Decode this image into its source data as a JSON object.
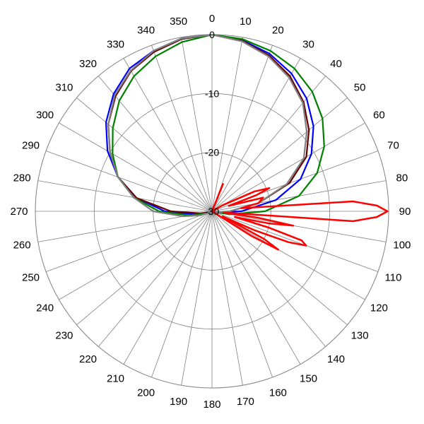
{
  "chart_data": {
    "type": "line",
    "subtype": "polar-radiation-pattern",
    "title": "",
    "angle_unit": "degrees",
    "angle_zero": "top",
    "angle_direction": "clockwise",
    "angle_step": 10,
    "angle_ticks": [
      "0",
      "10",
      "20",
      "30",
      "40",
      "50",
      "60",
      "70",
      "80",
      "90",
      "100",
      "110",
      "120",
      "130",
      "140",
      "150",
      "160",
      "170",
      "180",
      "190",
      "200",
      "210",
      "220",
      "230",
      "240",
      "250",
      "260",
      "270",
      "280",
      "290",
      "300",
      "310",
      "320",
      "330",
      "340",
      "350"
    ],
    "radial_range": [
      -30,
      0
    ],
    "radial_ticks": [
      -30,
      -20,
      -10,
      0
    ],
    "radial_tick_labels": [
      "-30",
      "-20",
      "-10",
      "0"
    ],
    "grid": true,
    "colors": {
      "grid": "#808080",
      "outline": "#808080",
      "series": [
        "#0000ff",
        "#660000",
        "#008000",
        "#808080",
        "#ff0000"
      ]
    },
    "series": [
      {
        "angles": [
          0,
          10,
          20,
          30,
          40,
          50,
          60,
          70,
          80,
          90,
          100,
          105,
          110,
          120,
          180,
          240,
          250,
          260,
          270,
          280,
          290,
          300,
          310,
          320,
          330,
          340,
          350,
          360
        ],
        "values": [
          0,
          -0.5,
          -1.5,
          -3,
          -5,
          -7.5,
          -10.5,
          -14,
          -19,
          -25,
          -29,
          -30,
          -30,
          -30,
          -30,
          -30,
          -29,
          -27,
          -22,
          -17,
          -13,
          -9.5,
          -6.5,
          -4,
          -2,
          -1,
          -0.2,
          0
        ]
      },
      {
        "angles": [
          0,
          10,
          20,
          30,
          40,
          50,
          60,
          70,
          80,
          90,
          100,
          105,
          110,
          120,
          180,
          240,
          250,
          260,
          270,
          280,
          290,
          300,
          310,
          320,
          330,
          340,
          350,
          360
        ],
        "values": [
          0,
          -0.6,
          -1.8,
          -3.5,
          -5.8,
          -8.5,
          -11.5,
          -16,
          -22,
          -27,
          -28,
          -30,
          -30,
          -30,
          -30,
          -30,
          -29.5,
          -28,
          -23,
          -17,
          -13,
          -10,
          -7,
          -4.5,
          -2.5,
          -1.2,
          -0.3,
          0
        ]
      },
      {
        "angles": [
          0,
          10,
          20,
          30,
          40,
          50,
          60,
          70,
          80,
          90,
          100,
          110,
          120,
          180,
          240,
          250,
          260,
          270,
          280,
          290,
          300,
          310,
          320,
          330,
          340,
          350,
          360
        ],
        "values": [
          0,
          -0.3,
          -1,
          -2,
          -3.5,
          -5.5,
          -8,
          -11,
          -15,
          -21,
          -27,
          -30,
          -30,
          -30,
          -30,
          -29,
          -26,
          -21,
          -16.5,
          -13,
          -10.5,
          -8,
          -5.5,
          -3.5,
          -2,
          -0.8,
          0
        ]
      },
      {
        "angles": [
          0,
          10,
          20,
          30,
          40,
          50,
          60,
          70,
          80,
          90,
          100,
          105,
          110,
          120,
          180,
          240,
          250,
          260,
          270,
          280,
          290,
          300,
          310,
          320,
          330,
          340,
          350,
          360
        ],
        "values": [
          0,
          -0.7,
          -2,
          -3.8,
          -6,
          -9,
          -12,
          -16.5,
          -22,
          -27,
          -29,
          -30,
          -30,
          -30,
          -30,
          -30,
          -28,
          -25,
          -20,
          -16.5,
          -13,
          -10,
          -7,
          -4.3,
          -2.4,
          -1,
          -0.2,
          0
        ]
      },
      {
        "angles": [
          0,
          10,
          18,
          22,
          30,
          40,
          50,
          60,
          65,
          68,
          70,
          72,
          75,
          80,
          84,
          86,
          88,
          90,
          92,
          94,
          96,
          98,
          100,
          102,
          104,
          106,
          108,
          110,
          112,
          114,
          116,
          118,
          120,
          122,
          124,
          126,
          130,
          140,
          150,
          160,
          170,
          180,
          360
        ],
        "values": [
          -30,
          -30,
          -30,
          -25,
          -30,
          -30,
          -30,
          -28,
          -22,
          -19.5,
          -22,
          -27,
          -21,
          -22,
          -25,
          -6,
          -2,
          -0.2,
          -2,
          -6,
          -28,
          -22,
          -16,
          -20,
          -26,
          -20,
          -14,
          -13,
          -16,
          -22,
          -28,
          -20,
          -17,
          -22,
          -30,
          -30,
          -30,
          -30,
          -30,
          -30,
          -30,
          -30,
          -30
        ]
      }
    ]
  }
}
